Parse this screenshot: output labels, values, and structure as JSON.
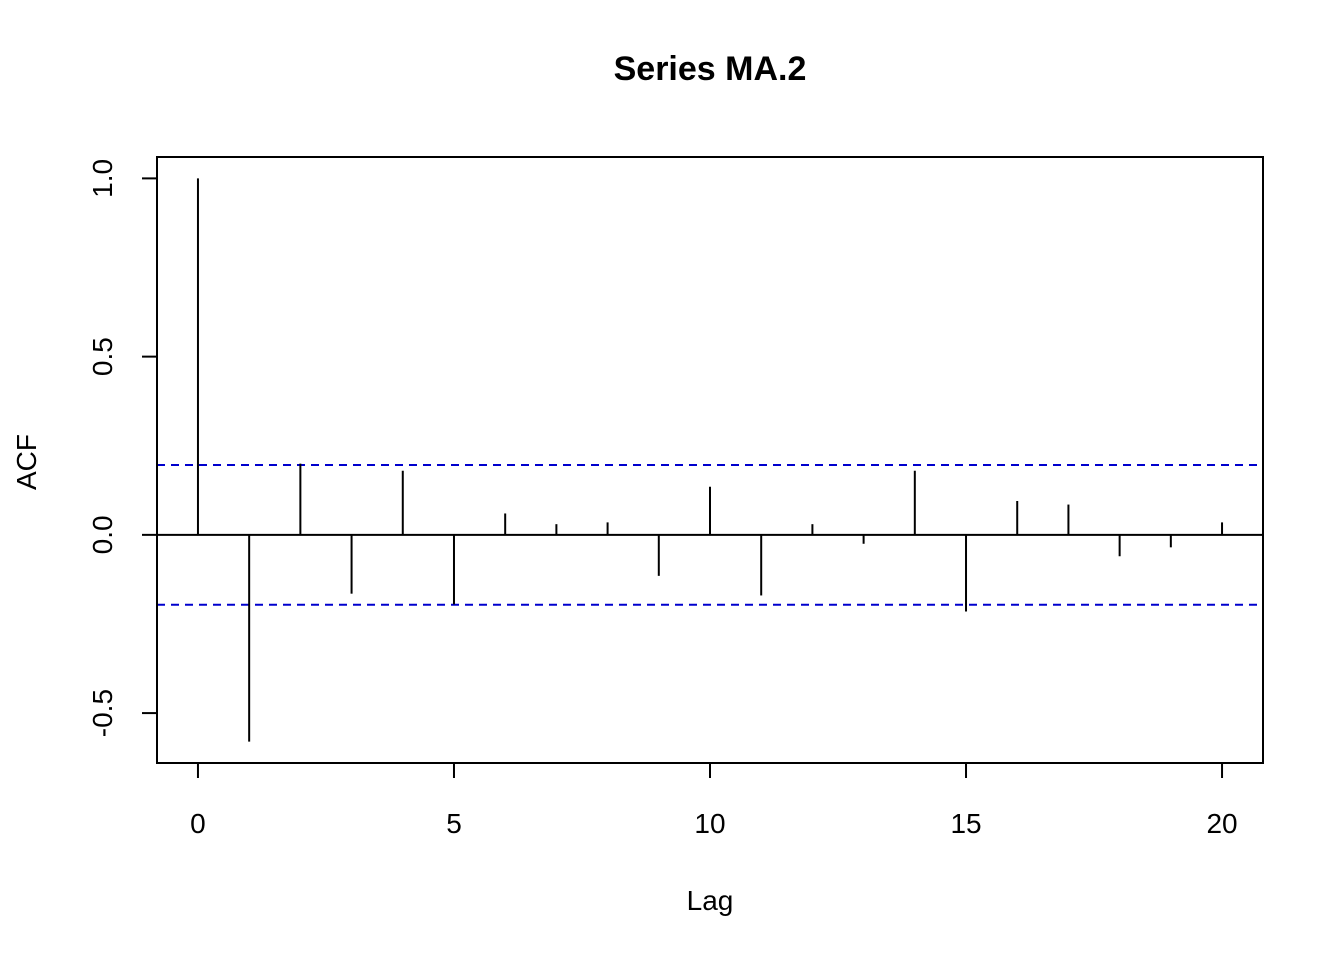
{
  "chart_data": {
    "type": "bar",
    "title": "Series  MA.2",
    "xlabel": "Lag",
    "ylabel": "ACF",
    "x": [
      0,
      1,
      2,
      3,
      4,
      5,
      6,
      7,
      8,
      9,
      10,
      11,
      12,
      13,
      14,
      15,
      16,
      17,
      18,
      19,
      20
    ],
    "values": [
      1.0,
      -0.58,
      0.2,
      -0.165,
      0.18,
      -0.195,
      0.06,
      0.03,
      0.035,
      -0.115,
      0.135,
      -0.17,
      0.03,
      -0.025,
      0.18,
      -0.215,
      0.095,
      0.085,
      -0.06,
      -0.035,
      0.035
    ],
    "xlim": [
      -0.8,
      20.8
    ],
    "ylim": [
      -0.64,
      1.06
    ],
    "xticks": [
      0,
      5,
      10,
      15,
      20
    ],
    "yticks": [
      -0.5,
      0.0,
      0.5,
      1.0
    ],
    "xtick_labels": [
      "0",
      "5",
      "10",
      "15",
      "20"
    ],
    "ytick_labels": [
      "-0.5",
      "0.0",
      "0.5",
      "1.0"
    ],
    "conf_limit": 0.196,
    "conf_color": "#0000cd",
    "bar_color": "#000000",
    "grid": false,
    "legend": "none"
  }
}
